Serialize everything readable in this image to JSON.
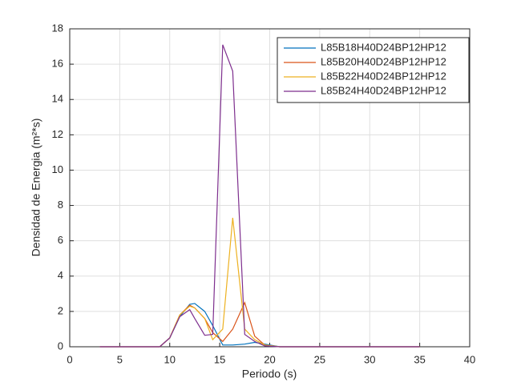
{
  "chart_data": {
    "type": "line",
    "xlabel": "Periodo (s)",
    "ylabel": "Densidad de Energia (m²*s)",
    "x": [
      3,
      9,
      10,
      11,
      12,
      12.5,
      13.5,
      14.3,
      15.3,
      16.3,
      17.5,
      18.5,
      19.5,
      21,
      35
    ],
    "series": [
      {
        "name": "L85B18H40D24BP12HP12",
        "color": "#0072BD",
        "values": [
          0,
          0,
          0.5,
          1.7,
          2.4,
          2.45,
          2.0,
          1.2,
          0.1,
          0.1,
          0.15,
          0.25,
          0.15,
          0,
          0
        ]
      },
      {
        "name": "L85B20H40D24BP12HP12",
        "color": "#D95319",
        "values": [
          0,
          0,
          0.5,
          1.8,
          2.35,
          2.2,
          1.6,
          0.8,
          0.3,
          1.0,
          2.5,
          0.6,
          0.1,
          0,
          0
        ]
      },
      {
        "name": "L85B22H40D24BP12HP12",
        "color": "#EDB120",
        "values": [
          0,
          0,
          0.5,
          1.8,
          2.3,
          2.2,
          1.6,
          0.4,
          1.0,
          7.3,
          1.0,
          0.4,
          0.1,
          0,
          0
        ]
      },
      {
        "name": "L85B24H40D24BP12HP12",
        "color": "#7E2F8E",
        "values": [
          0,
          0,
          0.5,
          1.7,
          2.1,
          1.6,
          0.65,
          0.7,
          17.1,
          15.6,
          0.7,
          0.3,
          0.05,
          0,
          0
        ]
      }
    ],
    "xlim": [
      0,
      40
    ],
    "xticks": [
      0,
      5,
      10,
      15,
      20,
      25,
      30,
      35,
      40
    ],
    "ylim": [
      0,
      18
    ],
    "yticks": [
      0,
      2,
      4,
      6,
      8,
      10,
      12,
      14,
      16,
      18
    ],
    "grid": true,
    "legend": "upper-right"
  }
}
